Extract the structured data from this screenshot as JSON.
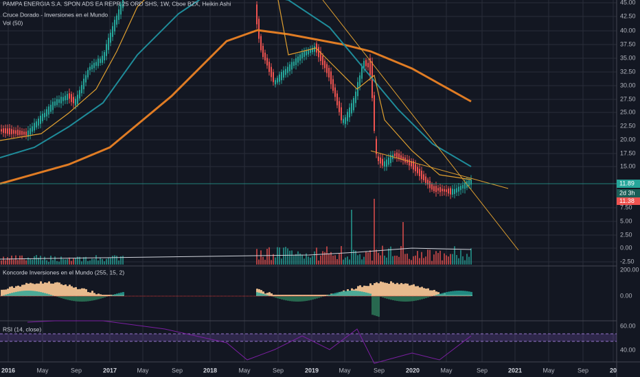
{
  "header": {
    "title": "PAMPA ENERGIA S.A. SPON ADS EA REPR 25 ORD SHS, 1W, Cboe BZX, Heikin Ashi",
    "indicators": [
      "Cruce Dorado - Inversiones en el Mundo",
      "Vol (50)"
    ]
  },
  "price_axis": {
    "labels": [
      "45.00",
      "42.50",
      "40.00",
      "37.50",
      "35.00",
      "32.50",
      "30.00",
      "27.50",
      "25.00",
      "22.50",
      "20.00",
      "17.50",
      "15.00",
      "7.50",
      "5.00",
      "2.50",
      "0.00",
      "-2.50"
    ]
  },
  "price_badges": [
    "11.89",
    "2d 3h",
    "11.38"
  ],
  "panes": [
    {
      "title": "Koncorde Inversiones en el Mundo (255, 15, 2)",
      "labels": [
        "200.00",
        "0.00"
      ]
    },
    {
      "title": "RSI (14, close)",
      "labels": [
        "60.00",
        "40.00"
      ]
    }
  ],
  "time_axis": [
    "2016",
    "May",
    "Sep",
    "2017",
    "May",
    "Sep",
    "2018",
    "May",
    "Sep",
    "2019",
    "May",
    "Sep",
    "2020",
    "May",
    "Sep",
    "2021",
    "May",
    "Sep",
    "20"
  ]
}
